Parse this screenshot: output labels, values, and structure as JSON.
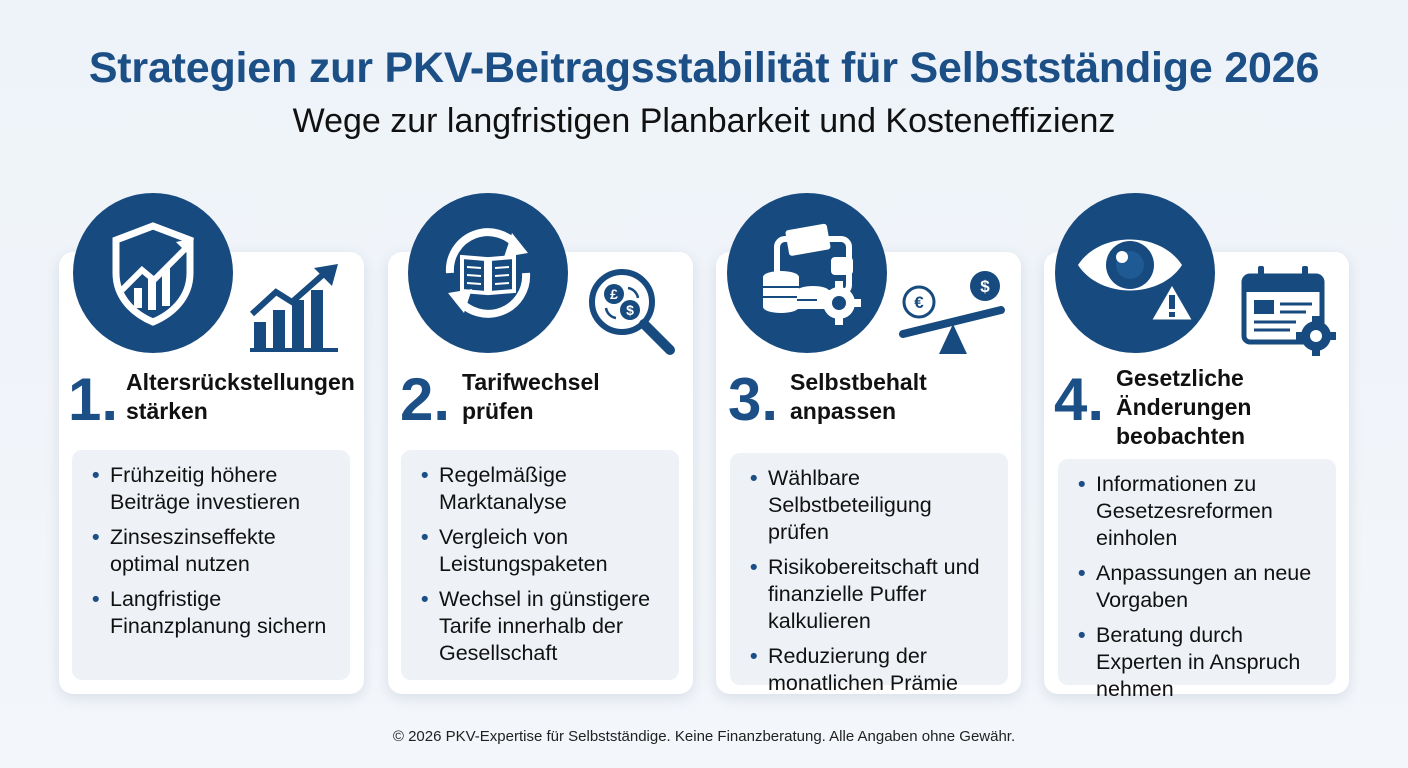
{
  "header": {
    "title": "Strategien zur PKV-Beitragsstabilität für Selbstständige 2026",
    "subtitle": "Wege zur langfristigen Planbarkeit und Kosteneffizienz"
  },
  "colors": {
    "primary": "#174a7e",
    "title": "#1b4f86",
    "card_bg": "#ffffff",
    "box_bg": "#eef2f7"
  },
  "cards": [
    {
      "number": "1.",
      "heading_lines": [
        "Altersrückstellungen",
        "stärken"
      ],
      "main_icon": "shield-growth-icon",
      "side_icon": "bar-chart-growth-icon",
      "bullets": [
        "Frühzeitig höhere Beiträge investieren",
        "Zinseszinseffekte optimal nutzen",
        "Langfristige Finanzplanung sichern"
      ]
    },
    {
      "number": "2.",
      "heading_lines": [
        "Tarifwechsel",
        "prüfen"
      ],
      "main_icon": "book-cycle-icon",
      "side_icon": "currency-magnifier-icon",
      "bullets": [
        "Regelmäßige Marktanalyse",
        "Vergleich von Leistungspaketen",
        "Wechsel in günstigere Tarife innerhalb der Gesellschaft"
      ]
    },
    {
      "number": "3.",
      "heading_lines": [
        "Selbstbehalt",
        "anpassen"
      ],
      "main_icon": "wallet-coins-gear-icon",
      "side_icon": "euro-dollar-balance-icon",
      "bullets": [
        "Wählbare Selbstbeteiligung prüfen",
        "Risikobereitschaft und finanzielle Puffer kalkulieren",
        "Reduzierung der monatlichen Prämie"
      ]
    },
    {
      "number": "4.",
      "heading_lines": [
        "Gesetzliche",
        "Änderungen",
        "beobachten"
      ],
      "main_icon": "eye-warning-icon",
      "side_icon": "calendar-gear-icon",
      "bullets": [
        "Informationen zu Gesetzesreformen einholen",
        "Anpassungen an neue Vorgaben",
        "Beratung durch Experten in Anspruch nehmen"
      ]
    }
  ],
  "footer": "© 2026 PKV-Expertise für Selbstständige. Keine Finanzberatung. Alle Angaben ohne Gewähr."
}
